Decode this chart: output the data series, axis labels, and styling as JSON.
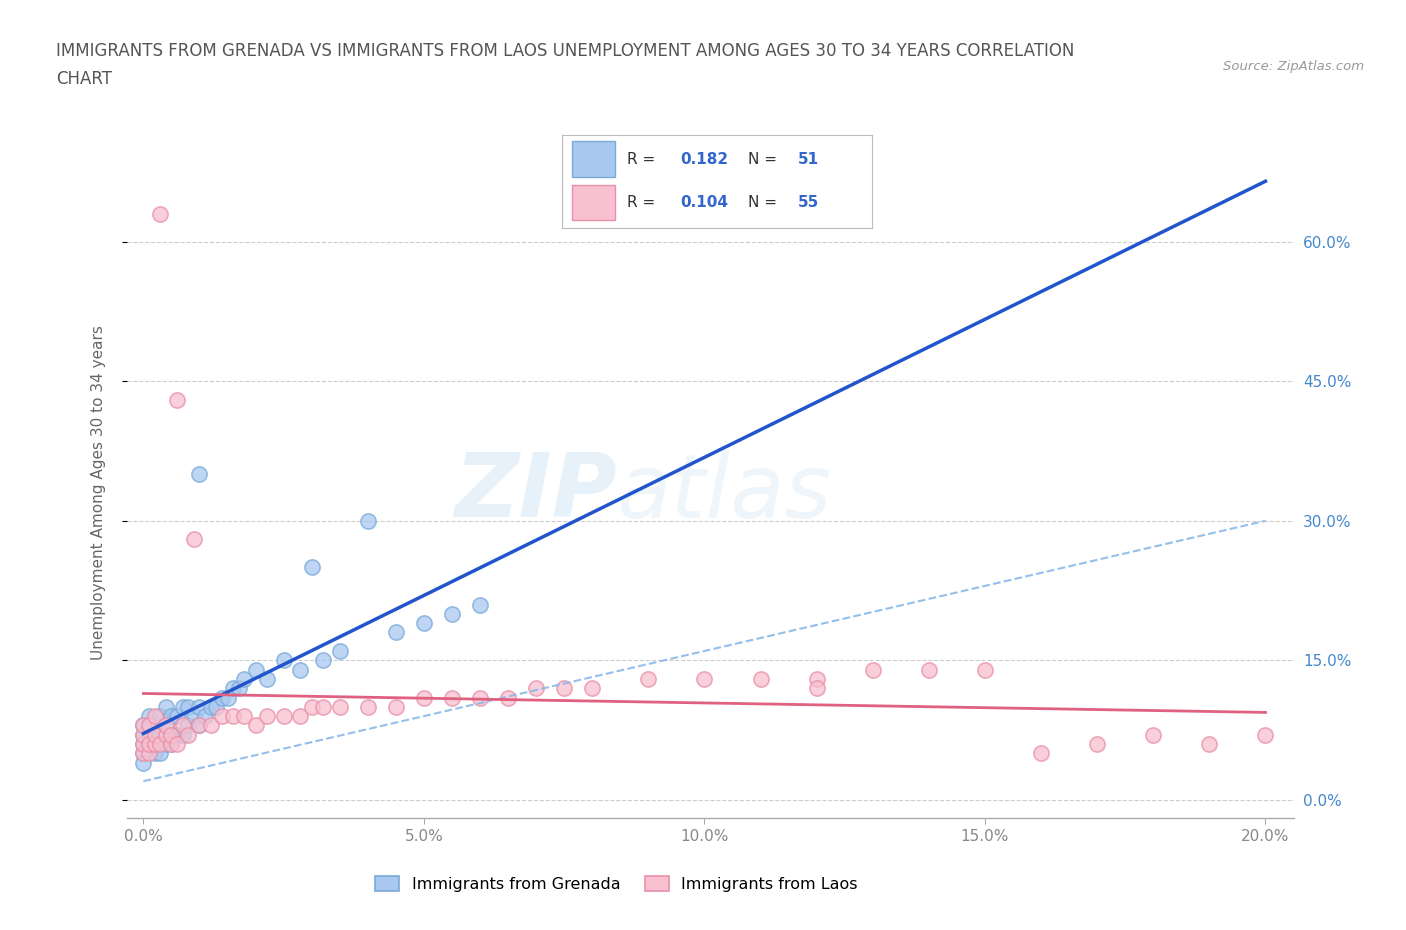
{
  "title_line1": "IMMIGRANTS FROM GRENADA VS IMMIGRANTS FROM LAOS UNEMPLOYMENT AMONG AGES 30 TO 34 YEARS CORRELATION",
  "title_line2": "CHART",
  "source_text": "Source: ZipAtlas.com",
  "ylabel": "Unemployment Among Ages 30 to 34 years",
  "xlim": [
    0.0,
    0.2
  ],
  "ylim": [
    0.0,
    0.65
  ],
  "yticks": [
    0.0,
    0.15,
    0.3,
    0.45,
    0.6
  ],
  "xticks": [
    0.0,
    0.05,
    0.1,
    0.15,
    0.2
  ],
  "grenada_color": "#a8c8f0",
  "grenada_edge": "#7aaad8",
  "laos_color": "#f8c0d0",
  "laos_edge": "#e890a8",
  "grenada_line_color": "#2255cc",
  "laos_line_color": "#e06080",
  "dashed_line_color": "#88b8e8",
  "grenada_R": 0.182,
  "grenada_N": 51,
  "laos_R": 0.104,
  "laos_N": 55,
  "legend_label_grenada": "Immigrants from Grenada",
  "legend_label_laos": "Immigrants from Laos",
  "watermark_zip": "ZIP",
  "watermark_atlas": "atlas",
  "background_color": "#ffffff",
  "grid_color": "#cccccc",
  "title_color": "#555555",
  "axis_label_color": "#666666",
  "tick_label_color": "#888888",
  "right_ytick_color": "#4488cc",
  "bottom_xtick_color": "#4488cc",
  "legend_R_color": "#333333",
  "legend_val_color": "#3366cc"
}
